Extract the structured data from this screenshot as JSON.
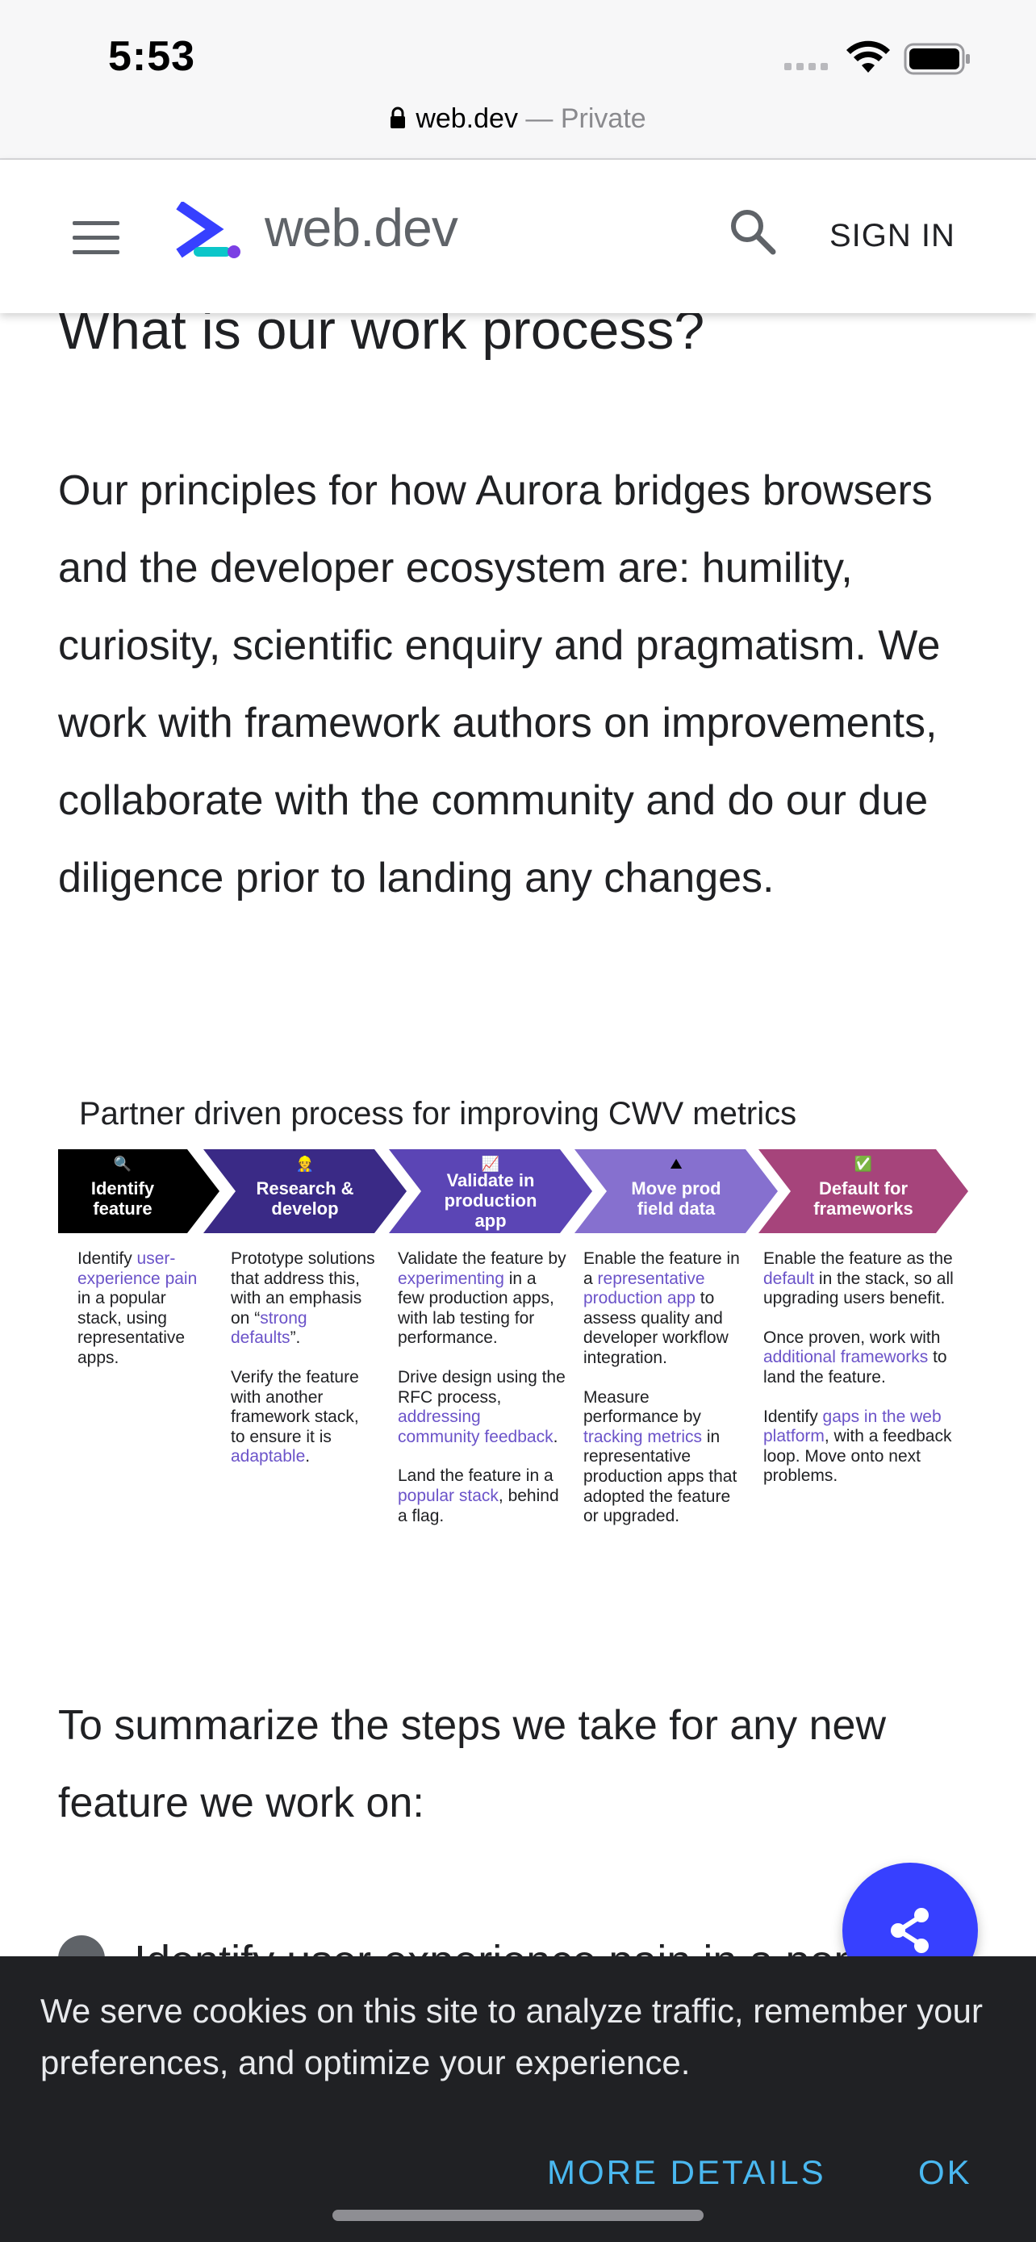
{
  "status_bar": {
    "time": "5:53"
  },
  "url_bar": {
    "domain": "web.dev",
    "separator": " — ",
    "mode": "Private"
  },
  "header": {
    "brand": "web.dev",
    "sign_in": "SIGN IN"
  },
  "main": {
    "heading": "What is our work process?",
    "paragraph": "Our principles for how Aurora bridges browsers and the developer ecosystem are: humility, curiosity, scientific enquiry and pragmatism. We work with framework authors on improvements, collaborate with the community and do our due diligence prior to landing any changes.",
    "diagram": {
      "title": "Partner driven process for improving CWV metrics",
      "steps": [
        {
          "icon": "🔍",
          "label_lines": [
            "Identify",
            "feature"
          ],
          "color": "#000000"
        },
        {
          "icon": "👷",
          "label_lines": [
            "Research &",
            "develop"
          ],
          "color": "#3a2a86"
        },
        {
          "icon": "📈",
          "label_lines": [
            "Validate in",
            "production",
            "app"
          ],
          "color": "#5b45b5"
        },
        {
          "icon": "⛰",
          "label_lines": [
            "Move prod",
            "field data"
          ],
          "color": "#8670cf"
        },
        {
          "icon": "✅",
          "label_lines": [
            "Default for",
            "frameworks"
          ],
          "color": "#a6447b"
        }
      ],
      "col1": {
        "t1": "Identify ",
        "l1": "user-experience pain",
        "t2": " in a popular stack, using representative apps."
      },
      "col2": {
        "p1_t1": "Prototype solutions that address this, with an emphasis on “",
        "p1_l1": "strong defaults",
        "p1_t2": "”.",
        "p2_t1": "Verify the feature with another framework stack, to ensure it is ",
        "p2_l1": "adaptable",
        "p2_t2": "."
      },
      "col3": {
        "p1_t1": "Validate the feature by ",
        "p1_l1": "experimenting",
        "p1_t2": " in a few production apps, with lab testing for performance.",
        "p2_t1": "Drive design using the RFC process, ",
        "p2_l1": "addressing community feedback",
        "p2_t2": ".",
        "p3_t1": "Land the feature in a ",
        "p3_l1": "popular stack",
        "p3_t2": ", behind a flag."
      },
      "col4": {
        "p1_t1": "Enable the feature in a ",
        "p1_l1": "representative production app",
        "p1_t2": " to assess quality and developer workflow integration.",
        "p2_t1": "Measure performance by ",
        "p2_l1": "tracking metrics",
        "p2_t2": " in representative production apps that adopted the feature or upgraded."
      },
      "col5": {
        "p1_t1": "Enable the feature as the ",
        "p1_l1": "default",
        "p1_t2": " in the stack, so all upgrading users benefit.",
        "p2_t1": "Once proven, work with ",
        "p2_l1": "additional frameworks",
        "p2_t2": " to land the feature.",
        "p3_t1": "Identify ",
        "p3_l1": "gaps in the web platform",
        "p3_t2": ", with a feedback loop. Move onto next problems."
      }
    },
    "summary": "To summarize the steps we take for any new feature we work on:",
    "first_bullet_peek": "Identify user experience pain in a pop"
  },
  "cookie_banner": {
    "text": "We serve cookies on this site to analyze traffic, remember your preferences, and optimize your experience.",
    "more_details": "MORE DETAILS",
    "ok": "OK"
  },
  "colors": {
    "accent": "#3740ff",
    "link": "#6b53c9",
    "banner_button": "#4ab8f0"
  }
}
